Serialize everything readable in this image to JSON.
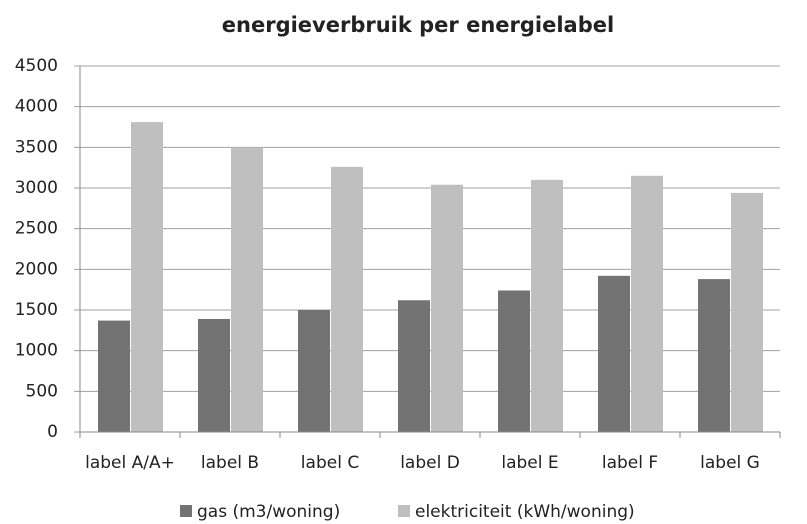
{
  "chart_data": {
    "type": "bar",
    "title": "energieverbruik per energielabel",
    "categories": [
      "label A/A+",
      "label B",
      "label C",
      "label D",
      "label E",
      "label F",
      "label G"
    ],
    "series": [
      {
        "name": "gas (m3/woning)",
        "color": "#737373",
        "values": [
          1370,
          1390,
          1500,
          1620,
          1740,
          1920,
          1880
        ]
      },
      {
        "name": "elektriciteit (kWh/woning)",
        "color": "#bfbfbf",
        "values": [
          3810,
          3500,
          3260,
          3040,
          3100,
          3150,
          2940
        ]
      }
    ],
    "ylim": [
      0,
      4500
    ],
    "yticks": [
      0,
      500,
      1000,
      1500,
      2000,
      2500,
      3000,
      3500,
      4000,
      4500
    ],
    "grid": true,
    "legend": "bottom"
  }
}
